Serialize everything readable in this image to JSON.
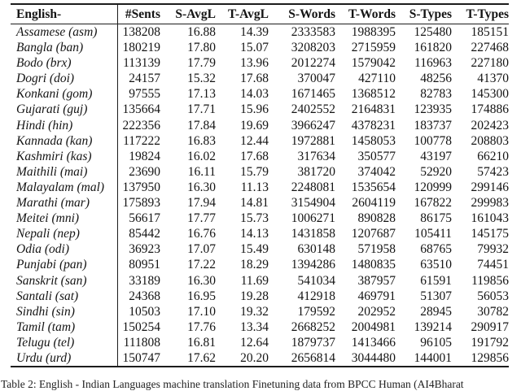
{
  "table": {
    "headers": [
      "English-",
      "#Sents",
      "S-AvgL",
      "T-AvgL",
      "S-Words",
      "T-Words",
      "S-Types",
      "T-Types"
    ],
    "rows": [
      {
        "cells": [
          "Assamese (asm)",
          "138208",
          "16.88",
          "14.39",
          "2333583",
          "1988395",
          "125480",
          "185151"
        ]
      },
      {
        "cells": [
          "Bangla (ban)",
          "180219",
          "17.80",
          "15.07",
          "3208203",
          "2715959",
          "161820",
          "227468"
        ]
      },
      {
        "cells": [
          "Bodo (brx)",
          "113139",
          "17.79",
          "13.96",
          "2012274",
          "1579042",
          "116963",
          "227180"
        ]
      },
      {
        "cells": [
          "Dogri (doi)",
          "24157",
          "15.32",
          "17.68",
          "370047",
          "427110",
          "48256",
          "41370"
        ]
      },
      {
        "cells": [
          "Konkani (gom)",
          "97555",
          "17.13",
          "14.03",
          "1671465",
          "1368512",
          "82783",
          "145300"
        ]
      },
      {
        "cells": [
          "Gujarati (guj)",
          "135664",
          "17.71",
          "15.96",
          "2402552",
          "2164831",
          "123935",
          "174886"
        ]
      },
      {
        "cells": [
          "Hindi (hin)",
          "222356",
          "17.84",
          "19.69",
          "3966247",
          "4378231",
          "183737",
          "202423"
        ]
      },
      {
        "cells": [
          "Kannada (kan)",
          "117222",
          "16.83",
          "12.44",
          "1972881",
          "1458053",
          "100778",
          "208803"
        ]
      },
      {
        "cells": [
          "Kashmiri (kas)",
          "19824",
          "16.02",
          "17.68",
          "317634",
          "350577",
          "43197",
          "66210"
        ]
      },
      {
        "cells": [
          "Maithili (mai)",
          "23690",
          "16.11",
          "15.79",
          "381720",
          "374042",
          "52920",
          "57423"
        ]
      },
      {
        "cells": [
          "Malayalam (mal)",
          "137950",
          "16.30",
          "11.13",
          "2248081",
          "1535654",
          "120999",
          "299146"
        ]
      },
      {
        "cells": [
          "Marathi (mar)",
          "175893",
          "17.94",
          "14.81",
          "3154904",
          "2604119",
          "167822",
          "299983"
        ]
      },
      {
        "cells": [
          "Meitei (mni)",
          "56617",
          "17.77",
          "15.73",
          "1006271",
          "890828",
          "86175",
          "161043"
        ]
      },
      {
        "cells": [
          "Nepali (nep)",
          "85442",
          "16.76",
          "14.13",
          "1431858",
          "1207687",
          "105411",
          "145175"
        ]
      },
      {
        "cells": [
          "Odia (odi)",
          "36923",
          "17.07",
          "15.49",
          "630148",
          "571958",
          "68765",
          "79932"
        ]
      },
      {
        "cells": [
          "Punjabi (pan)",
          "80951",
          "17.22",
          "18.29",
          "1394286",
          "1480835",
          "63510",
          "74451"
        ]
      },
      {
        "cells": [
          "Sanskrit (san)",
          "33189",
          "16.30",
          "11.69",
          "541034",
          "387957",
          "61591",
          "119856"
        ]
      },
      {
        "cells": [
          "Santali (sat)",
          "24368",
          "16.95",
          "19.28",
          "412918",
          "469791",
          "51307",
          "56053"
        ]
      },
      {
        "cells": [
          "Sindhi (sin)",
          "10503",
          "17.10",
          "19.32",
          "179592",
          "202952",
          "28945",
          "30782"
        ]
      },
      {
        "cells": [
          "Tamil (tam)",
          "150254",
          "17.76",
          "13.34",
          "2668252",
          "2004981",
          "139214",
          "290917"
        ]
      },
      {
        "cells": [
          "Telugu (tel)",
          "111808",
          "16.81",
          "12.64",
          "1879737",
          "1413466",
          "96105",
          "191792"
        ]
      },
      {
        "cells": [
          "Urdu (urd)",
          "150747",
          "17.62",
          "20.20",
          "2656814",
          "3044480",
          "144001",
          "129856"
        ]
      }
    ]
  },
  "caption": {
    "text": "Table 2: English - Indian Languages machine translation Finetuning data from BPCC Human (AI4Bharat"
  }
}
